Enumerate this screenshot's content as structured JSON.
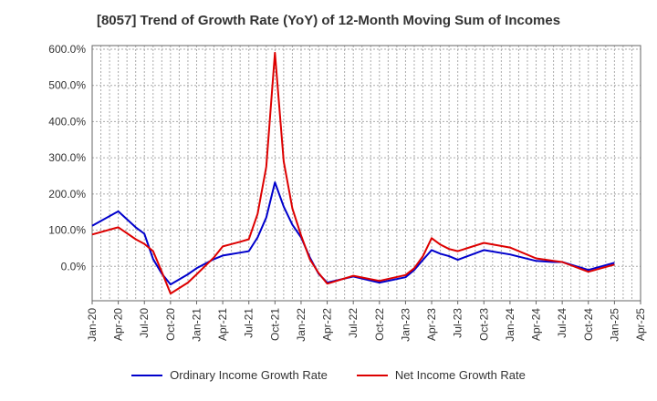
{
  "title": "[8057]  Trend of Growth Rate (YoY) of 12-Month Moving Sum of Incomes",
  "colors": {
    "ordinary": "#0000cc",
    "net": "#dd0000",
    "grid": "#aaaaaa",
    "axis": "#666666"
  },
  "chart_data": {
    "type": "line",
    "title": "[8057]  Trend of Growth Rate (YoY) of 12-Month Moving Sum of Incomes",
    "xlabel": "",
    "ylabel": "",
    "grid": true,
    "legend_position": "bottom",
    "x_range": [
      "2020-01",
      "2025-04"
    ],
    "ylim": [
      -95,
      610
    ],
    "y_ticks": [
      0,
      100,
      200,
      300,
      400,
      500,
      600
    ],
    "y_tick_labels": [
      "0.0%",
      "100.0%",
      "200.0%",
      "300.0%",
      "400.0%",
      "500.0%",
      "600.0%"
    ],
    "x_tick_labels": [
      "Jan-20",
      "Apr-20",
      "Jul-20",
      "Oct-20",
      "Jan-21",
      "Apr-21",
      "Jul-21",
      "Oct-21",
      "Jan-22",
      "Apr-22",
      "Jul-22",
      "Oct-22",
      "Jan-23",
      "Apr-23",
      "Jul-23",
      "Oct-23",
      "Jan-24",
      "Apr-24",
      "Jul-24",
      "Oct-24",
      "Jan-25",
      "Apr-25"
    ],
    "x": [
      "2020-01",
      "2020-04",
      "2020-06",
      "2020-07",
      "2020-08",
      "2020-09",
      "2020-10",
      "2020-12",
      "2021-01",
      "2021-03",
      "2021-04",
      "2021-06",
      "2021-07",
      "2021-08",
      "2021-09",
      "2021-10",
      "2021-11",
      "2021-12",
      "2022-01",
      "2022-02",
      "2022-03",
      "2022-04",
      "2022-07",
      "2022-10",
      "2023-01",
      "2023-02",
      "2023-03",
      "2023-04",
      "2023-05",
      "2023-06",
      "2023-07",
      "2023-10",
      "2024-01",
      "2024-04",
      "2024-06",
      "2024-07",
      "2024-10",
      "2025-01"
    ],
    "series": [
      {
        "name": "Ordinary Income Growth Rate",
        "values": [
          112,
          152,
          108,
          90,
          20,
          -20,
          -50,
          -22,
          -5,
          20,
          30,
          38,
          42,
          80,
          135,
          232,
          165,
          115,
          80,
          25,
          -20,
          -45,
          -28,
          -45,
          -30,
          -10,
          18,
          45,
          35,
          28,
          18,
          45,
          33,
          15,
          12,
          12,
          -10,
          10
        ]
      },
      {
        "name": "Net Income Growth Rate",
        "values": [
          88,
          108,
          75,
          62,
          42,
          -15,
          -75,
          -45,
          -22,
          25,
          55,
          68,
          75,
          145,
          275,
          590,
          290,
          160,
          85,
          20,
          -18,
          -48,
          -26,
          -40,
          -24,
          -5,
          28,
          78,
          60,
          48,
          42,
          65,
          52,
          22,
          15,
          12,
          -15,
          5
        ]
      }
    ]
  },
  "legend": {
    "ordinary": "Ordinary Income Growth Rate",
    "net": "Net Income Growth Rate"
  }
}
